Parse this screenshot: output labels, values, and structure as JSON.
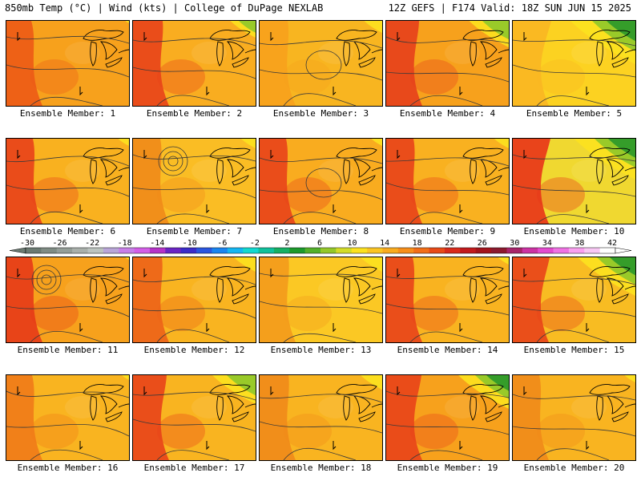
{
  "header": {
    "left": "850mb Temp (°C) | Wind (kts) | College of DuPage NEXLAB",
    "right": "12Z GEFS | F174 Valid: 18Z SUN JUN 15 2025"
  },
  "panels": [
    {
      "label": "Ensemble Member: 1",
      "base": "#f7a11c",
      "west": "#ec5a16",
      "cool": 0.05
    },
    {
      "label": "Ensemble Member: 2",
      "base": "#f9ad20",
      "west": "#e8431a",
      "cool": 0.35
    },
    {
      "label": "Ensemble Member: 3",
      "base": "#f8b520",
      "west": "#f7a11c",
      "cool": 0.25
    },
    {
      "label": "Ensemble Member: 4",
      "base": "#f7a11c",
      "west": "#e53f1c",
      "cool": 0.55
    },
    {
      "label": "Ensemble Member: 5",
      "base": "#fcd221",
      "west": "#f9b622",
      "cool": 0.9
    },
    {
      "label": "Ensemble Member: 6",
      "base": "#f9b11f",
      "west": "#e84119",
      "cool": 0.15
    },
    {
      "label": "Ensemble Member: 7",
      "base": "#fabd24",
      "west": "#f08a1a",
      "cool": 0.2
    },
    {
      "label": "Ensemble Member: 8",
      "base": "#f9ac1f",
      "west": "#e8431a",
      "cool": 0.15
    },
    {
      "label": "Ensemble Member: 9",
      "base": "#f9b120",
      "west": "#e8431a",
      "cool": 0.2
    },
    {
      "label": "Ensemble Member: 10",
      "base": "#f0d830",
      "west": "#e8341a",
      "cool": 0.85
    },
    {
      "label": "Ensemble Member: 11",
      "base": "#f7a11c",
      "west": "#e53a18",
      "cool": 0.05
    },
    {
      "label": "Ensemble Member: 12",
      "base": "#f9b420",
      "west": "#ec6218",
      "cool": 0.3
    },
    {
      "label": "Ensemble Member: 13",
      "base": "#fbc824",
      "west": "#f39a1c",
      "cool": 0.3
    },
    {
      "label": "Ensemble Member: 14",
      "base": "#f9b320",
      "west": "#e8431a",
      "cool": 0.15
    },
    {
      "label": "Ensemble Member: 15",
      "base": "#f8bc22",
      "west": "#e8431a",
      "cool": 0.8
    },
    {
      "label": "Ensemble Member: 16",
      "base": "#f9b420",
      "west": "#f07a18",
      "cool": 0.1
    },
    {
      "label": "Ensemble Member: 17",
      "base": "#f9b420",
      "west": "#e8431a",
      "cool": 0.6
    },
    {
      "label": "Ensemble Member: 18",
      "base": "#f9b420",
      "west": "#f08a1a",
      "cool": 0.3
    },
    {
      "label": "Ensemble Member: 19",
      "base": "#f7a11c",
      "west": "#e8431a",
      "cool": 0.7
    },
    {
      "label": "Ensemble Member: 20",
      "base": "#f9b420",
      "west": "#f08a1a",
      "cool": 0.15
    }
  ],
  "colorbar": {
    "ticks": [
      "-30",
      "-26",
      "-22",
      "-18",
      "-14",
      "-10",
      "-6",
      "-2",
      "2",
      "6",
      "10",
      "14",
      "18",
      "22",
      "26",
      "30",
      "34",
      "38",
      "42"
    ],
    "colors": [
      "#6b7a72",
      "#7f8c84",
      "#949e98",
      "#a9b0ab",
      "#bcc4c0",
      "#b9a6d8",
      "#c87fe8",
      "#d35ee8",
      "#b533c8",
      "#6a25c4",
      "#3b2cc9",
      "#2a56e0",
      "#1a85f0",
      "#14b7f2",
      "#12d9d0",
      "#10c19c",
      "#16b064",
      "#1c9a2c",
      "#52b02a",
      "#94c82a",
      "#d3dc28",
      "#fce21f",
      "#fbc523",
      "#f9ab1f",
      "#f78f1a",
      "#f26e17",
      "#e84a18",
      "#d92a1b",
      "#c21a1d",
      "#a3141c",
      "#8c1a2e",
      "#a8246a",
      "#cc33a4",
      "#e34bcf",
      "#f072e4",
      "#f9a0ef",
      "#f8c8f4",
      "#ffffff"
    ]
  }
}
